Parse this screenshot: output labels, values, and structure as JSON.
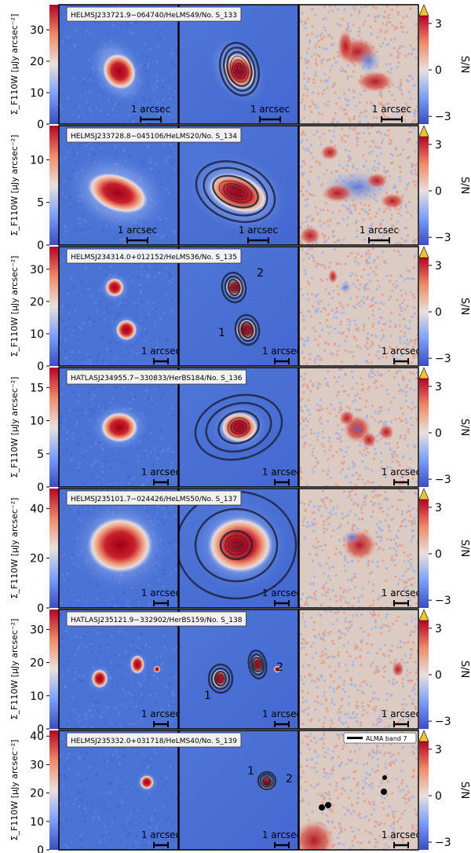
{
  "figure": {
    "left_colorbar_label": "Σ_F110W [μJy arcsec⁻²]",
    "right_colorbar_label": "S/N",
    "scalebar_text": "1 arcsec",
    "alma_legend": "ALMA band 7"
  },
  "colors": {
    "background_blue": "#4a72d6",
    "residual_bg": "#d9c8c0",
    "source_red": "#b0101c",
    "contour": "#1c2440",
    "overflow_triangle": "#f2c230"
  },
  "chart_data": [
    {
      "type": "heatmap",
      "title": "HELMSJ233721.9−064740/HeLMS49/No. S_133",
      "colorbar_left_ticks": [
        "0",
        "10",
        "20",
        "30"
      ],
      "colorbar_left_range": [
        0,
        38
      ],
      "colorbar_right_ticks": [
        "3",
        "0",
        "−3"
      ],
      "colorbar_right_range": [
        -3.5,
        3.5
      ],
      "component_labels": []
    },
    {
      "type": "heatmap",
      "title": "HELMSJ233728.8−045106/HeLMS20/No. S_134",
      "colorbar_left_ticks": [
        "0",
        "5",
        "10"
      ],
      "colorbar_left_range": [
        0,
        14
      ],
      "colorbar_right_ticks": [
        "3",
        "0",
        "−3"
      ],
      "colorbar_right_range": [
        -3.5,
        3.5
      ],
      "component_labels": []
    },
    {
      "type": "heatmap",
      "title": "HELMSJ234314.0+012152/HeLMS36/No. S_135",
      "colorbar_left_ticks": [
        "0",
        "10",
        "20",
        "30"
      ],
      "colorbar_left_range": [
        0,
        37
      ],
      "colorbar_right_ticks": [
        "3",
        "0",
        "−3"
      ],
      "colorbar_right_range": [
        -3.5,
        3.5
      ],
      "component_labels": [
        "2",
        "1"
      ]
    },
    {
      "type": "heatmap",
      "title": "HATLASJ234955.7−330833/HerBS184/No. S_136",
      "colorbar_left_ticks": [
        "0",
        "5",
        "10",
        "15"
      ],
      "colorbar_left_range": [
        0,
        18
      ],
      "colorbar_right_ticks": [
        "3",
        "0",
        "−3"
      ],
      "colorbar_right_range": [
        -3.5,
        3.5
      ],
      "component_labels": []
    },
    {
      "type": "heatmap",
      "title": "HELMSJ235101.7−024426/HeLMS50/No. S_137",
      "colorbar_left_ticks": [
        "0",
        "20",
        "40"
      ],
      "colorbar_left_range": [
        0,
        48
      ],
      "colorbar_right_ticks": [
        "3",
        "0",
        "−3"
      ],
      "colorbar_right_range": [
        -3.5,
        3.5
      ],
      "component_labels": []
    },
    {
      "type": "heatmap",
      "title": "HATLASJ235121.9−332902/HerBS159/No. S_138",
      "colorbar_left_ticks": [
        "0",
        "10",
        "20",
        "30"
      ],
      "colorbar_left_range": [
        0,
        36
      ],
      "colorbar_right_ticks": [
        "3",
        "0",
        "−3"
      ],
      "colorbar_right_range": [
        -3.5,
        3.5
      ],
      "component_labels": [
        "2",
        "1"
      ]
    },
    {
      "type": "heatmap",
      "title": "HELMSJ235332.0+031718/HeLMS40/No. S_139",
      "colorbar_left_ticks": [
        "0",
        "10",
        "20",
        "30",
        "40"
      ],
      "colorbar_left_range": [
        0,
        42
      ],
      "colorbar_right_ticks": [
        "3",
        "0",
        "−3"
      ],
      "colorbar_right_range": [
        -3.5,
        3.5
      ],
      "component_labels": [
        "1",
        "2"
      ]
    }
  ]
}
